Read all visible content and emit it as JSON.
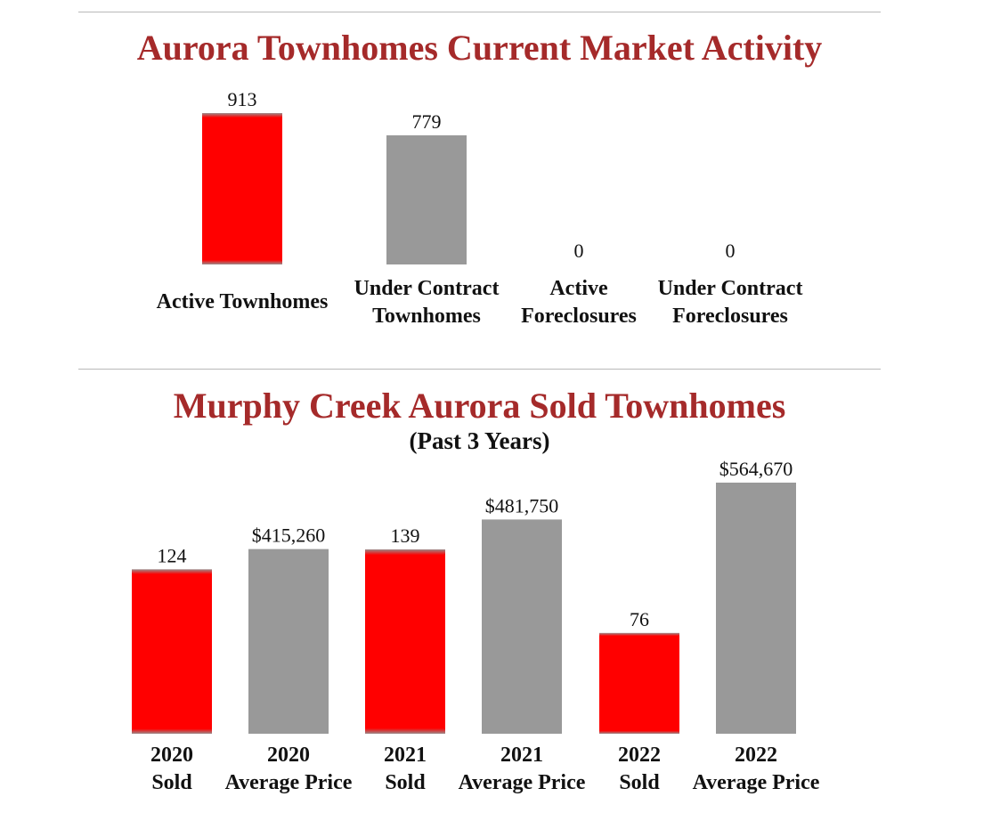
{
  "chart_data": [
    {
      "type": "bar",
      "title": "Aurora Townhomes Current Market Activity",
      "categories": [
        "Active Townhomes",
        "Under Contract Townhomes",
        "Active Foreclosures",
        "Under Contract Foreclosures"
      ],
      "category_lines": [
        [
          "Active Townhomes"
        ],
        [
          "Under Contract",
          "Townhomes"
        ],
        [
          "Active",
          "Foreclosures"
        ],
        [
          "Under Contract",
          "Foreclosures"
        ]
      ],
      "values": [
        913,
        779,
        0,
        0
      ],
      "labels": [
        "913",
        "779",
        "0",
        "0"
      ],
      "bar_colors": [
        "red",
        "gray",
        "gray",
        "gray"
      ]
    },
    {
      "type": "bar",
      "title": "Murphy Creek Aurora Sold Townhomes",
      "subtitle": "(Past 3 Years)",
      "categories": [
        "2020 Sold",
        "2020 Average Price",
        "2021 Sold",
        "2021 Average Price",
        "2022 Sold",
        "2022 Average Price"
      ],
      "category_lines": [
        [
          "2020",
          "Sold"
        ],
        [
          "2020",
          "Average Price"
        ],
        [
          "2021",
          "Sold"
        ],
        [
          "2021",
          "Average Price"
        ],
        [
          "2022",
          "Sold"
        ],
        [
          "2022",
          "Average Price"
        ]
      ],
      "values": [
        124,
        415260,
        139,
        481750,
        76,
        564670
      ],
      "labels": [
        "124",
        "$415,260",
        "139",
        "$481,750",
        "76",
        "$564,670"
      ],
      "bar_colors": [
        "red",
        "gray",
        "red",
        "gray",
        "red",
        "gray"
      ]
    }
  ],
  "colors": {
    "title": "#a52a2a",
    "red_bar": "#ff0000",
    "gray_bar": "#999999"
  }
}
